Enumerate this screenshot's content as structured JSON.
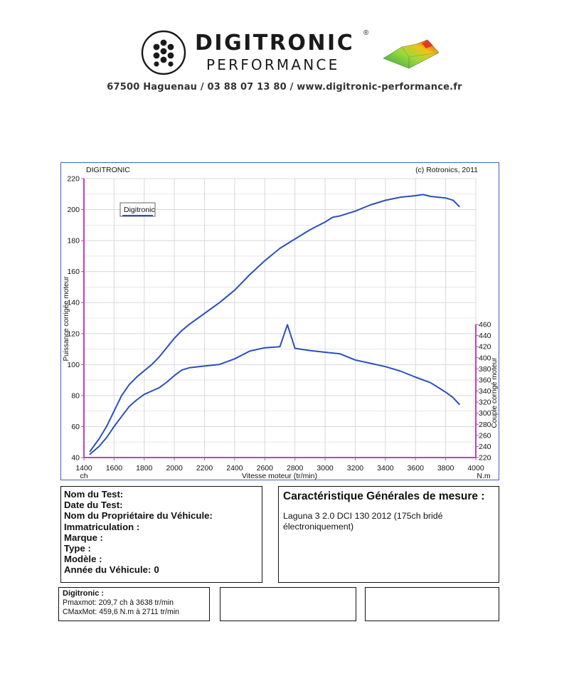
{
  "header": {
    "brand_name": "DIGITRONIC",
    "brand_reg": "®",
    "brand_sub": "PERFORMANCE",
    "contact": "67500 Haguenau / 03 88 07 13 80 / www.digitronic-performance.fr"
  },
  "colors": {
    "curve": "#2a4fc0",
    "frame": "#3a62c9",
    "axis": "#c040c0",
    "grid": "#d8d8d8"
  },
  "chart_data": {
    "type": "line",
    "title_left": "DIGITRONIC",
    "title_right": "(c) Rotronics, 2011",
    "legend_label": "Digitronic",
    "legend_position": "top-left",
    "xlabel": "Vitesse moteur (tr/min)",
    "xlim": [
      1400,
      4000
    ],
    "x_ticks": [
      1400,
      1600,
      1800,
      2000,
      2200,
      2400,
      2600,
      2800,
      3000,
      3200,
      3400,
      3600,
      3800,
      4000
    ],
    "x_unit": "ch",
    "x_unit_right": "N.m",
    "y_left": {
      "label": "Puissance corrigée moteur",
      "lim": [
        40,
        220
      ],
      "ticks": [
        40,
        60,
        80,
        100,
        120,
        140,
        160,
        180,
        200,
        220
      ]
    },
    "y_right": {
      "label": "Couple corrigé moteur",
      "lim": [
        220,
        460
      ],
      "ticks": [
        220,
        240,
        260,
        280,
        300,
        320,
        340,
        360,
        380,
        400,
        420,
        440,
        460
      ]
    },
    "grid": true,
    "series": [
      {
        "axis": "left",
        "x": [
          1440,
          1500,
          1550,
          1600,
          1650,
          1700,
          1750,
          1800,
          1850,
          1900,
          1950,
          2000,
          2050,
          2100,
          2200,
          2300,
          2400,
          2500,
          2600,
          2700,
          2800,
          2900,
          3000,
          3050,
          3100,
          3200,
          3300,
          3400,
          3500,
          3600,
          3650,
          3700,
          3800,
          3850,
          3890
        ],
        "y": [
          44,
          52,
          60,
          70,
          80,
          87,
          92,
          96,
          100,
          105,
          111,
          117,
          122,
          126,
          133,
          140,
          148,
          158,
          167,
          175,
          181,
          187,
          192,
          195,
          196,
          199,
          203,
          206,
          208,
          209,
          209.7,
          208.5,
          207.5,
          206,
          202
        ]
      },
      {
        "axis": "right",
        "x": [
          1440,
          1500,
          1550,
          1600,
          1650,
          1700,
          1750,
          1800,
          1850,
          1900,
          1950,
          2000,
          2050,
          2100,
          2200,
          2300,
          2400,
          2500,
          2600,
          2700,
          2750,
          2800,
          2900,
          3000,
          3100,
          3200,
          3300,
          3400,
          3500,
          3600,
          3700,
          3800,
          3850,
          3890
        ],
        "y": [
          226,
          240,
          256,
          276,
          294,
          312,
          324,
          334,
          340,
          346,
          356,
          368,
          378,
          382,
          385,
          388,
          398,
          412,
          418,
          420,
          459.6,
          417,
          413,
          410,
          407,
          396,
          390,
          384,
          376,
          365,
          355,
          338,
          328,
          316
        ]
      }
    ]
  },
  "test_info": {
    "rows": [
      {
        "label": "Nom du Test:",
        "value": ""
      },
      {
        "label": "Date du Test:",
        "value": ""
      },
      {
        "label": "Nom du Propriétaire du Véhicule:",
        "value": ""
      },
      {
        "label": "Immatriculation  :",
        "value": ""
      },
      {
        "label": "Marque  :",
        "value": ""
      },
      {
        "label": "Type  :",
        "value": ""
      },
      {
        "label": "Modèle  :",
        "value": ""
      },
      {
        "label": "Année du Véhicule:",
        "value": "0"
      }
    ]
  },
  "caracteristics": {
    "title": "Caractéristique Générales de mesure :",
    "description": "Laguna 3 2.0 DCI 130 2012 (175ch bridé électroniquement)"
  },
  "summary": {
    "title": "Digitronic :",
    "pmax": "Pmaxmot: 209,7 ch à 3638 tr/min",
    "cmax": "CMaxMot: 459,6 N.m à 2711 tr/min"
  }
}
